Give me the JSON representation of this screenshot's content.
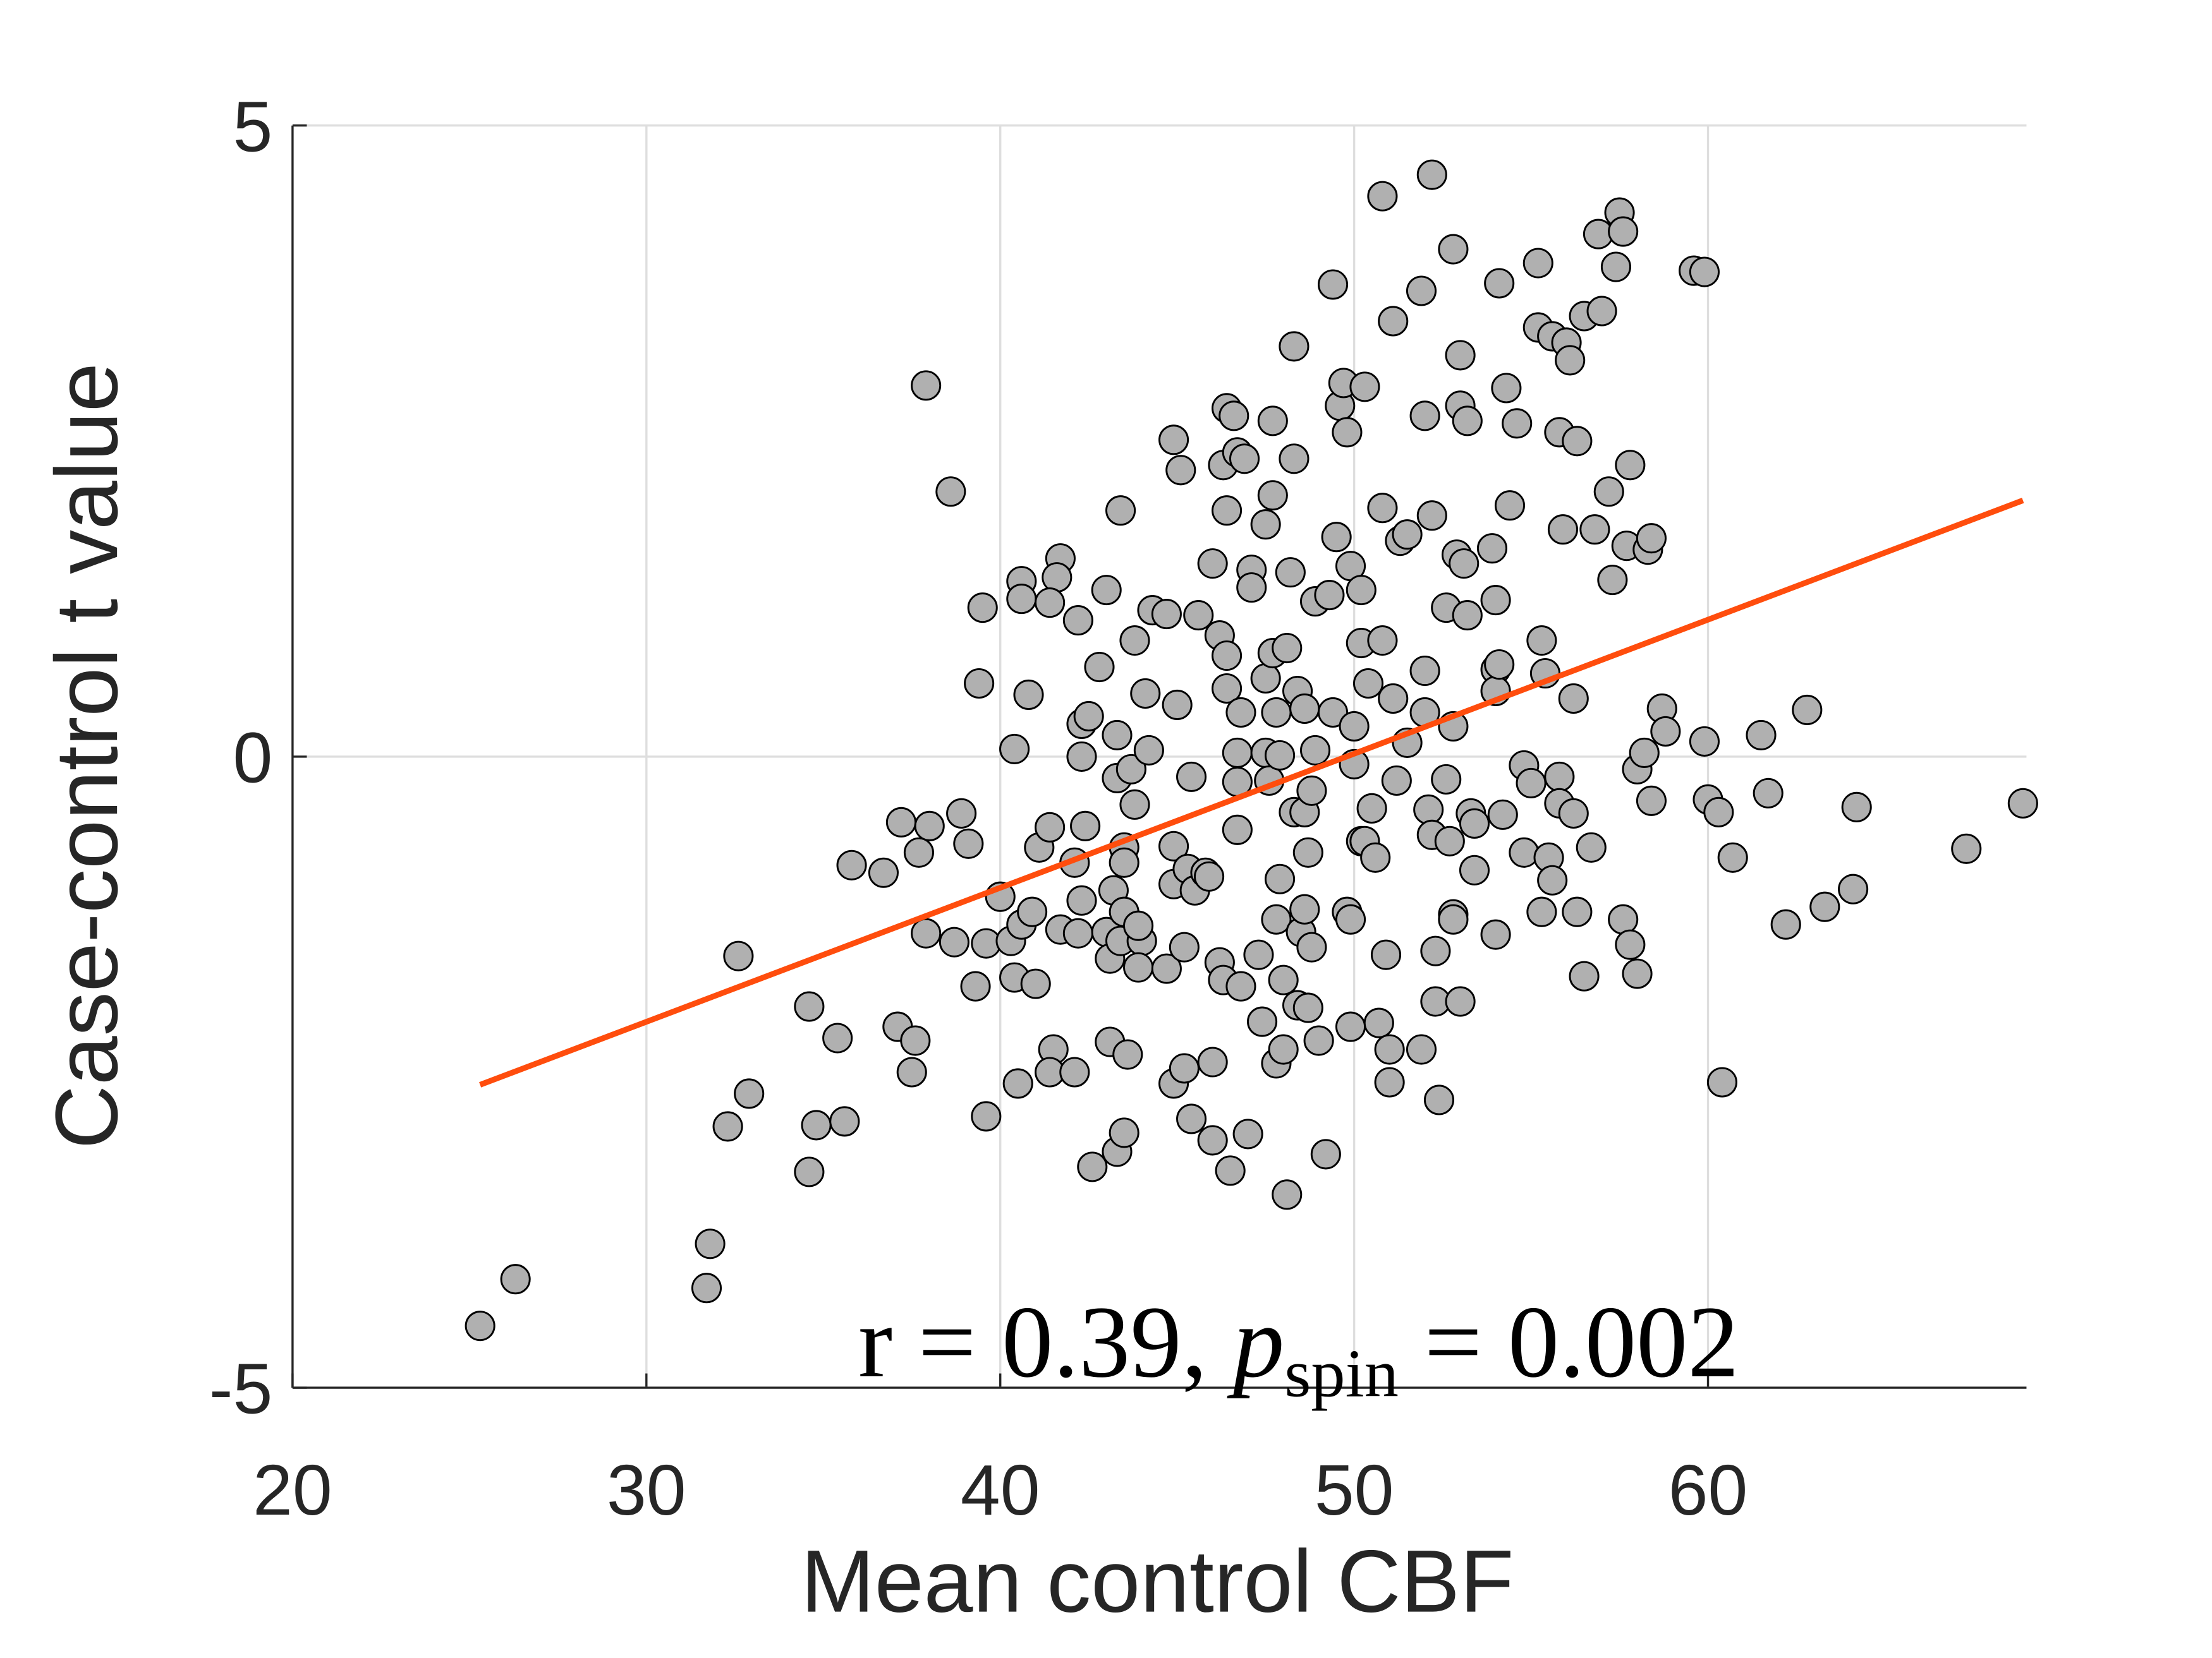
{
  "chart_data": {
    "type": "scatter",
    "xlabel": "Mean control CBF",
    "ylabel": "Case-control t value",
    "annotation": [
      "r = 0.39, ",
      "p",
      "spin",
      " = 0.002"
    ],
    "xlim": [
      20,
      69
    ],
    "ylim": [
      -5,
      5
    ],
    "xticks": [
      20,
      30,
      40,
      50,
      60
    ],
    "yticks": [
      -5,
      0,
      5
    ],
    "grid": true,
    "color": "#b0b0b0",
    "fit_line": {
      "color": "#ff4d0d",
      "x": [
        25.3,
        68.9
      ],
      "y": [
        -2.6,
        2.03
      ]
    },
    "x": [
      25.3,
      26.3,
      31.8,
      31.7,
      32.3,
      32.9,
      32.6,
      34.6,
      34.8,
      35.6,
      34.6,
      35.4,
      35.8,
      36.7,
      37.2,
      38.0,
      37.7,
      37.1,
      37.6,
      37.5,
      37.9,
      38.6,
      37.9,
      38.9,
      39.1,
      38.7,
      39.3,
      39.6,
      39.6,
      39.4,
      39.5,
      40.0,
      40.4,
      40.6,
      40.6,
      40.8,
      40.3,
      40.4,
      41.0,
      40.5,
      40.6,
      41.1,
      41.4,
      40.9,
      41.5,
      41.4,
      41.7,
      41.6,
      41.4,
      41.7,
      42.1,
      42.2,
      42.3,
      42.3,
      42.4,
      42.3,
      42.2,
      42.1,
      42.6,
      42.8,
      42.5,
      43.0,
      43.0,
      43.1,
      43.1,
      43.4,
      43.3,
      43.3,
      43.5,
      43.5,
      43.2,
      43.5,
      43.4,
      43.3,
      43.6,
      43.5,
      43.7,
      43.8,
      43.8,
      44.0,
      43.9,
      43.9,
      44.1,
      44.2,
      44.3,
      44.7,
      44.7,
      44.9,
      44.9,
      44.9,
      44.9,
      45.0,
      45.1,
      45.2,
      45.2,
      45.3,
      45.4,
      45.4,
      45.5,
      45.6,
      45.8,
      45.9,
      46.0,
      46.0,
      46.0,
      46.2,
      46.2,
      46.3,
      46.4,
      46.3,
      46.4,
      46.4,
      46.4,
      46.5,
      46.6,
      46.7,
      46.7,
      46.8,
      46.7,
      46.7,
      46.8,
      46.9,
      47.0,
      47.1,
      47.1,
      47.3,
      47.4,
      47.5,
      47.5,
      47.5,
      47.6,
      47.7,
      47.7,
      47.7,
      47.8,
      47.8,
      47.8,
      47.9,
      47.9,
      48.0,
      48.0,
      48.1,
      48.1,
      48.2,
      48.3,
      48.3,
      48.3,
      48.4,
      48.4,
      48.5,
      48.6,
      48.6,
      48.6,
      48.7,
      48.7,
      48.8,
      48.8,
      48.9,
      48.9,
      49.0,
      49.2,
      49.3,
      49.4,
      49.4,
      49.5,
      49.6,
      49.7,
      49.8,
      49.8,
      49.9,
      49.9,
      49.9,
      50.0,
      50.0,
      50.2,
      50.2,
      50.2,
      50.3,
      50.3,
      50.4,
      50.5,
      50.6,
      50.7,
      50.8,
      50.8,
      50.8,
      50.9,
      51.0,
      51.1,
      51.0,
      51.1,
      51.2,
      51.3,
      51.5,
      51.5,
      51.9,
      51.9,
      52.0,
      52.0,
      52.0,
      52.1,
      52.2,
      52.2,
      52.2,
      52.3,
      52.3,
      52.4,
      52.6,
      52.6,
      52.7,
      52.8,
      52.8,
      52.8,
      52.8,
      52.9,
      53.0,
      53.0,
      53.0,
      53.1,
      53.2,
      53.2,
      53.3,
      53.4,
      53.4,
      53.9,
      54.0,
      54.1,
      54.0,
      54.0,
      54.0,
      54.1,
      54.2,
      54.3,
      54.4,
      54.6,
      54.8,
      54.8,
      55.0,
      55.2,
      55.2,
      55.3,
      55.3,
      55.4,
      55.5,
      55.6,
      55.6,
      55.8,
      55.8,
      55.8,
      55.9,
      56.0,
      56.1,
      56.2,
      56.2,
      56.3,
      56.3,
      56.5,
      56.5,
      56.7,
      56.8,
      56.9,
      57.0,
      57.2,
      57.3,
      57.4,
      57.5,
      57.6,
      57.6,
      57.7,
      57.8,
      57.8,
      58.0,
      58.0,
      58.2,
      58.3,
      58.4,
      58.4,
      58.7,
      58.8,
      59.6,
      59.9,
      59.9,
      60.0,
      60.3,
      60.4,
      60.7,
      61.5,
      61.7,
      62.2,
      62.8,
      63.3,
      64.1,
      64.2,
      67.3,
      68.9
    ],
    "values": [
      -4.51,
      -4.14,
      -3.86,
      -4.21,
      -2.93,
      -2.67,
      -1.58,
      -3.29,
      -2.92,
      -2.89,
      -1.98,
      -2.23,
      -0.86,
      -0.92,
      -0.52,
      -0.55,
      -0.76,
      -2.14,
      -2.25,
      -2.5,
      2.94,
      2.1,
      -1.4,
      -0.45,
      -0.69,
      -1.47,
      -1.82,
      -1.48,
      -2.85,
      0.58,
      1.18,
      -1.11,
      0.06,
      1.39,
      1.25,
      0.49,
      -1.46,
      -1.75,
      -1.8,
      -2.59,
      -1.33,
      -0.72,
      -0.56,
      -1.23,
      -2.32,
      -2.5,
      1.57,
      1.42,
      1.22,
      -1.37,
      -0.84,
      1.08,
      0.26,
      0.0,
      -0.55,
      -1.14,
      -1.4,
      -2.5,
      -3.25,
      0.71,
      0.32,
      1.32,
      -1.39,
      -1.6,
      -2.26,
      1.95,
      0.17,
      -0.17,
      -0.72,
      -0.84,
      -1.06,
      -1.23,
      -1.46,
      -3.13,
      -2.36,
      -2.98,
      -0.1,
      -0.38,
      0.92,
      -1.46,
      -1.67,
      -1.34,
      0.5,
      0.05,
      1.16,
      1.13,
      -1.68,
      -0.71,
      -1.01,
      2.51,
      -2.59,
      0.41,
      2.27,
      -2.47,
      -1.51,
      -0.89,
      -0.16,
      -2.87,
      -1.06,
      1.12,
      -0.92,
      -0.95,
      -2.42,
      1.53,
      -3.04,
      0.96,
      -1.63,
      -1.77,
      2.76,
      2.31,
      1.95,
      0.8,
      0.54,
      -3.28,
      2.7,
      2.41,
      0.03,
      0.35,
      -0.2,
      -0.58,
      -1.82,
      2.36,
      -2.99,
      1.48,
      1.34,
      -1.57,
      -2.1,
      1.84,
      0.62,
      0.03,
      -0.19,
      2.66,
      2.07,
      0.82,
      -1.29,
      -2.43,
      0.35,
      0.01,
      -0.97,
      -1.77,
      -2.32,
      -3.47,
      0.86,
      1.46,
      -0.44,
      2.36,
      3.25,
      0.52,
      -1.97,
      -1.39,
      -1.21,
      0.38,
      -0.44,
      -0.76,
      -1.99,
      -0.27,
      -1.51,
      1.23,
      0.05,
      -2.25,
      -3.15,
      1.28,
      3.74,
      0.35,
      1.74,
      2.78,
      2.96,
      2.57,
      -1.23,
      -1.29,
      -2.14,
      1.51,
      0.24,
      -0.06,
      1.32,
      -0.67,
      0.9,
      2.93,
      -0.67,
      0.58,
      -0.41,
      -0.8,
      -2.11,
      0.92,
      1.97,
      4.44,
      -1.57,
      -2.32,
      3.45,
      -2.58,
      0.46,
      -0.19,
      1.71,
      0.11,
      1.76,
      -2.32,
      3.69,
      0.68,
      2.7,
      0.35,
      -0.42,
      -0.62,
      4.61,
      1.91,
      -1.54,
      -1.94,
      -2.72,
      1.18,
      -0.18,
      -0.67,
      -1.25,
      -1.29,
      4.02,
      0.24,
      1.6,
      3.18,
      -1.94,
      2.78,
      1.53,
      2.66,
      1.12,
      -0.45,
      -0.53,
      -0.9,
      1.65,
      -1.41,
      3.75,
      0.69,
      1.24,
      0.52,
      0.73,
      -0.46,
      2.92,
      1.99,
      2.64,
      -0.76,
      -0.07,
      -0.21,
      3.91,
      3.4,
      0.92,
      -1.23,
      0.66,
      -0.8,
      3.33,
      -0.98,
      -0.16,
      2.57,
      -0.37,
      1.8,
      3.28,
      3.14,
      -0.45,
      0.46,
      2.5,
      -1.23,
      3.49,
      -1.74,
      -0.72,
      1.8,
      4.14,
      3.53,
      2.1,
      1.4,
      3.88,
      4.31,
      4.16,
      -1.29,
      1.67,
      2.31,
      -1.49,
      -0.1,
      -1.72,
      0.03,
      1.64,
      1.73,
      -0.35,
      0.38,
      0.2,
      3.85,
      3.84,
      0.12,
      -0.34,
      -0.44,
      -2.58,
      -0.8,
      0.17,
      -0.29,
      -1.33,
      0.37,
      -1.19,
      -1.05,
      -0.4,
      -0.73,
      -0.37
    ]
  }
}
